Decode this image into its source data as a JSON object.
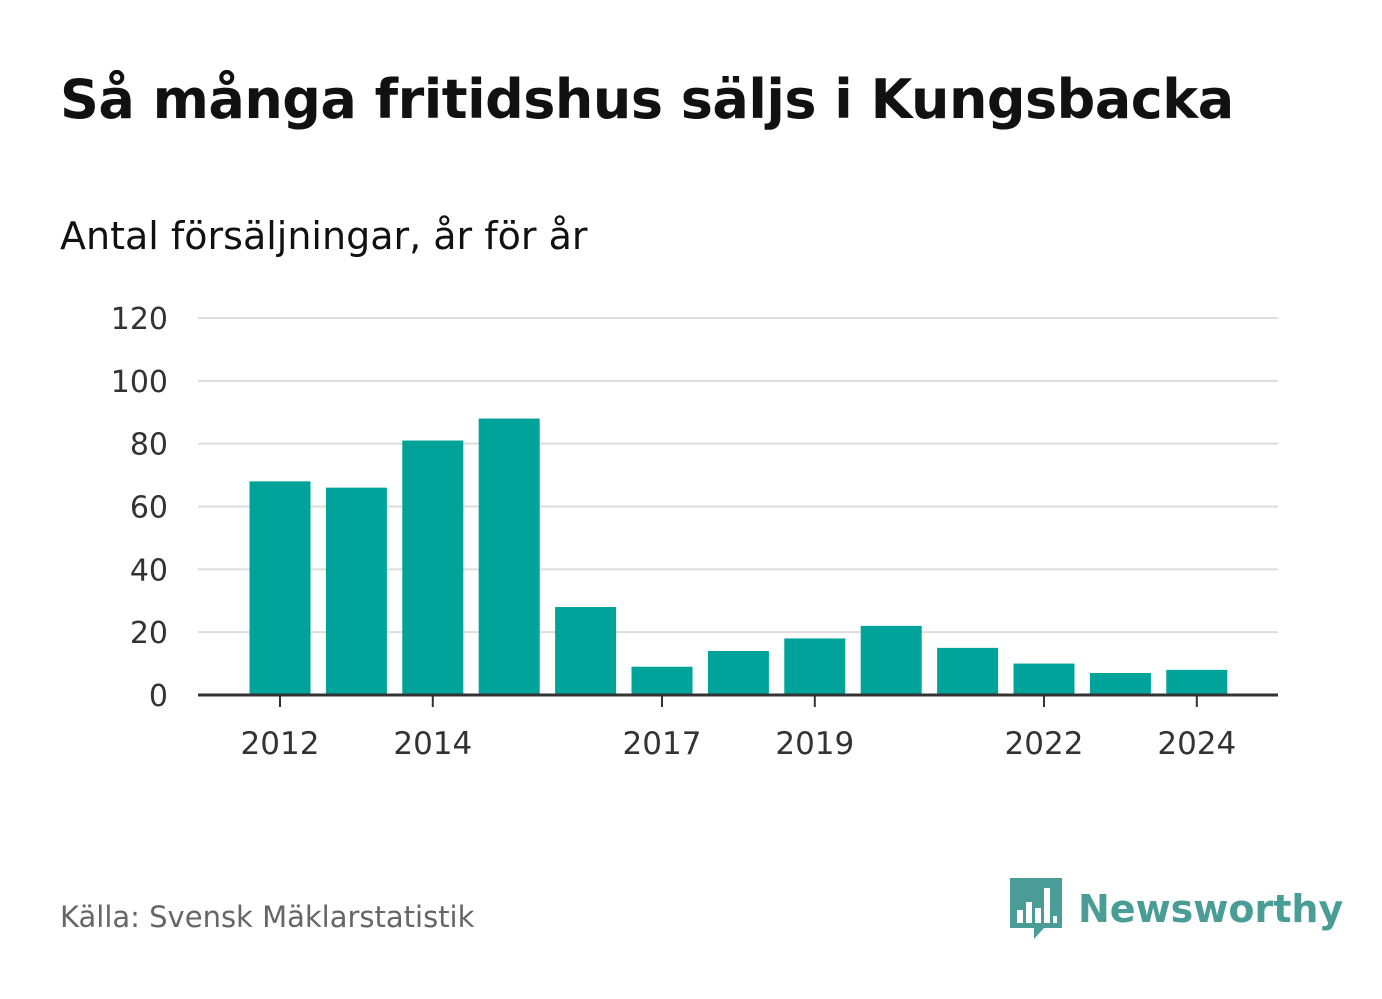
{
  "title": "Så många fritidshus säljs i Kungsbacka",
  "subtitle": "Antal försäljningar, år för år",
  "source": "Källa: Svensk Mäklarstatistik",
  "brand": {
    "name": "Newsworthy",
    "color": "#4a9c96",
    "icon": "newsworthy-logo-icon"
  },
  "colors": {
    "bar": "#00a39a",
    "grid": "#dddddd",
    "axis": "#333333"
  },
  "chart_data": {
    "type": "bar",
    "categories": [
      "2012",
      "2013",
      "2014",
      "2015",
      "2016",
      "2017",
      "2018",
      "2019",
      "2020",
      "2021",
      "2022",
      "2023",
      "2024"
    ],
    "values": [
      68,
      66,
      81,
      88,
      28,
      9,
      14,
      18,
      22,
      15,
      10,
      7,
      8
    ],
    "x_tick_labels": [
      "2012",
      "2014",
      "2017",
      "2019",
      "2022",
      "2024"
    ],
    "y_ticks": [
      0,
      20,
      40,
      60,
      80,
      100,
      120
    ],
    "ylim": [
      0,
      120
    ],
    "title": "Så många fritidshus säljs i Kungsbacka",
    "subtitle": "Antal försäljningar, år för år",
    "xlabel": "",
    "ylabel": "",
    "grid": true,
    "legend": "none"
  }
}
